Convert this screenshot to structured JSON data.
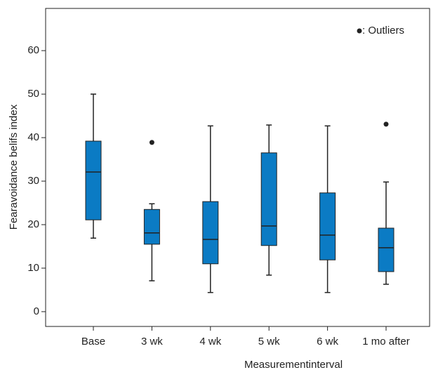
{
  "chart_data": {
    "type": "box",
    "x_label": "Measurementinterval",
    "y_label": "Fearavoidance belifs index",
    "annotation": ": Outliers",
    "categories": [
      "Base",
      "3 wk",
      "4 wk",
      "5 wk",
      "6 wk",
      "1 mo after"
    ],
    "color": "#0b7bc4",
    "boxes": [
      {
        "min": 16.9,
        "q1": 21.1,
        "median": 32.1,
        "q3": 39.2,
        "max": 50,
        "outliers": []
      },
      {
        "min": 7.1,
        "q1": 15.5,
        "median": 18.1,
        "q3": 23.5,
        "max": 24.8,
        "outliers": [
          38.9
        ]
      },
      {
        "min": 4.4,
        "q1": 11,
        "median": 16.6,
        "q3": 25.3,
        "max": 42.7,
        "outliers": []
      },
      {
        "min": 8.4,
        "q1": 15.2,
        "median": 19.7,
        "q3": 36.5,
        "max": 42.9,
        "outliers": []
      },
      {
        "min": 4.4,
        "q1": 11.9,
        "median": 17.6,
        "q3": 27.3,
        "max": 42.7,
        "outliers": []
      },
      {
        "min": 6.3,
        "q1": 9.2,
        "median": 14.7,
        "q3": 19.2,
        "max": 29.8,
        "outliers": [
          43.1
        ]
      }
    ],
    "ylim": [
      -3.4,
      69.7
    ],
    "yticks": [
      0,
      10,
      20,
      30,
      40,
      50,
      60
    ]
  }
}
